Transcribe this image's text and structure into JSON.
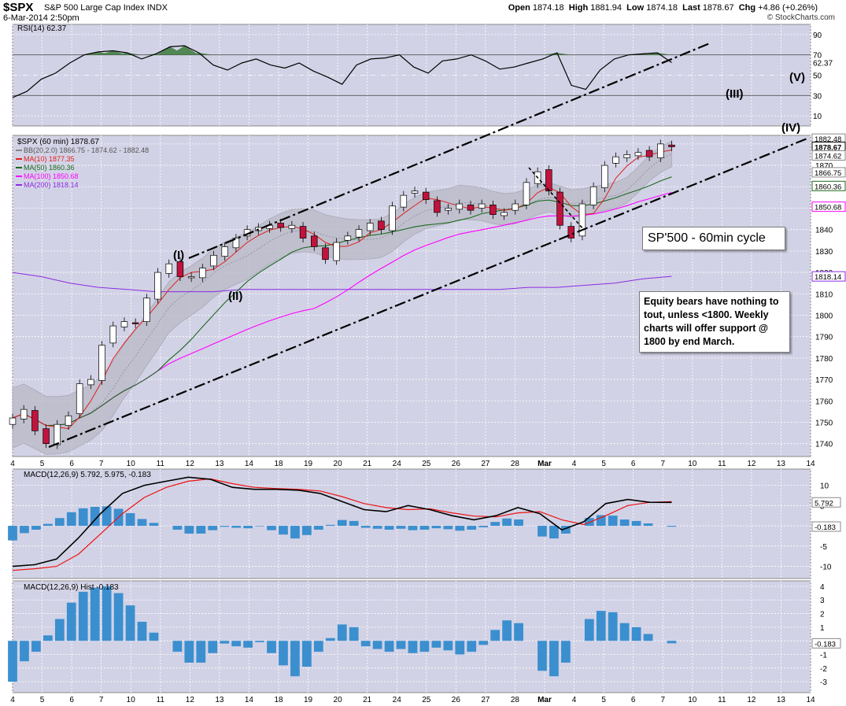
{
  "header": {
    "symbol": "$SPX",
    "name": "S&P 500 Large Cap Index",
    "exchange": "INDX",
    "date": "6-Mar-2014 2:50pm",
    "open_label": "Open",
    "open": "1874.18",
    "high_label": "High",
    "high": "1881.94",
    "low_label": "Low",
    "low": "1874.18",
    "last_label": "Last",
    "last": "1878.67",
    "chg_label": "Chg",
    "chg": "+4.86 (+0.26%)",
    "credit": "© StockCharts.com"
  },
  "annotations": {
    "cycle_box": "SP'500 - 60min cycle",
    "note": "Equity bears have nothing to tout, unless <1800. Weekly charts will offer support @ 1800 by end March.",
    "waves": [
      "(I)",
      "(II)",
      "(III)",
      "(IV)",
      "(V)"
    ]
  },
  "colors": {
    "panel_bg": "#d2d2e6",
    "up": "#ffffff",
    "down": "#c0133d",
    "ma10": "#e0201e",
    "ma50": "#1d6a1d",
    "ma100": "#ff00ff",
    "ma200": "#8a2be2",
    "macd": "#000000",
    "signal": "#ee1111",
    "hist": "#3b8fcf",
    "rsi_fill": "#3a7a3a"
  },
  "chart_data": {
    "type": "candlestick",
    "x_tick_labels": [
      "4",
      "5",
      "6",
      "7",
      "10",
      "11",
      "12",
      "13",
      "14",
      "18",
      "19",
      "20",
      "21",
      "24",
      "25",
      "26",
      "27",
      "28",
      "Mar",
      "4",
      "5",
      "6",
      "7",
      "10",
      "11",
      "12",
      "13",
      "14"
    ],
    "price_panel": {
      "title": "$SPX (60 min) 1878.67",
      "legend": [
        {
          "name": "BB(20,2.0) 1866.75 - 1874.62 - 1882.48",
          "color": "#888888"
        },
        {
          "name": "MA(10) 1877.35",
          "color": "#e0201e"
        },
        {
          "name": "MA(50) 1860.36",
          "color": "#1d6a1d"
        },
        {
          "name": "MA(100) 1850.68",
          "color": "#ff00ff"
        },
        {
          "name": "MA(200) 1818.14",
          "color": "#8a2be2"
        }
      ],
      "y_ticks": [
        1740,
        1750,
        1760,
        1770,
        1780,
        1790,
        1800,
        1810,
        1820,
        1830,
        1840,
        1850,
        1860,
        1870,
        1880
      ],
      "ylim": [
        1734,
        1884
      ],
      "right_tags": [
        "1882.48",
        "1878.67",
        "1874.62",
        "1866.75",
        "1860.36",
        "1850.68",
        "1818.14"
      ],
      "close_series": [
        1752,
        1756,
        1746,
        1740,
        1749,
        1753,
        1768,
        1770,
        1786,
        1795,
        1797,
        1796,
        1808,
        1820,
        1824,
        1818,
        1818,
        1822,
        1828,
        1832,
        1836,
        1840,
        1841,
        1842,
        1841,
        1842,
        1836,
        1832,
        1826,
        1834,
        1837,
        1840,
        1843,
        1840,
        1851,
        1856,
        1858,
        1854,
        1848,
        1850,
        1852,
        1849,
        1852,
        1847,
        1848,
        1852,
        1862,
        1867,
        1858,
        1842,
        1836,
        1852,
        1860,
        1870,
        1874,
        1875,
        1876,
        1874,
        1880,
        1878.67
      ],
      "ma200_series": [
        1820,
        1818,
        1815,
        1813,
        1812,
        1811,
        1811,
        1811,
        1812,
        1812,
        1812,
        1812,
        1812,
        1812,
        1812,
        1812,
        1812,
        1812,
        1813,
        1813,
        1814,
        1815,
        1817,
        1818.14
      ]
    },
    "rsi_panel": {
      "name": "RSI(14) 62.37",
      "y_ticks": [
        10,
        30,
        50,
        70,
        90
      ],
      "ylim": [
        0,
        100
      ],
      "value_tag": "62.37",
      "series": [
        28,
        34,
        46,
        52,
        62,
        70,
        73,
        74,
        72,
        66,
        71,
        78,
        79,
        72,
        60,
        55,
        62,
        66,
        60,
        57,
        62,
        54,
        48,
        41,
        60,
        66,
        67,
        70,
        58,
        52,
        64,
        66,
        70,
        64,
        56,
        58,
        62,
        66,
        72,
        40,
        36,
        55,
        66,
        70,
        71,
        72,
        62.37
      ]
    },
    "macd_panel": {
      "name": "MACD(12,26,9) 5.792, 5.975, -0.183",
      "y_ticks": [
        -10,
        -5,
        0,
        5,
        10
      ],
      "ylim": [
        -13,
        14
      ],
      "macd_series": [
        -10,
        -9.6,
        -8.2,
        -3,
        3,
        8,
        10,
        11,
        12,
        11.5,
        9.5,
        9,
        9,
        8.8,
        8,
        6,
        4,
        3.5,
        5,
        4,
        2.5,
        1.5,
        2.5,
        4.5,
        3,
        -1,
        1,
        5.5,
        6.5,
        5.8,
        5.792
      ],
      "signal_series": [
        -11,
        -10.6,
        -10,
        -7,
        -2,
        3,
        7,
        9.5,
        11,
        11.6,
        10.4,
        9.5,
        9.2,
        9,
        8.6,
        7.2,
        5.5,
        4.5,
        4,
        4.2,
        3.2,
        2.4,
        2.2,
        3.2,
        3.5,
        1.5,
        0.3,
        2.5,
        5,
        5.8,
        5.975
      ],
      "value_tags": [
        "5.792",
        "-0.183"
      ]
    },
    "hist_panel": {
      "name": "MACD(12,26,9) Hist -0.183",
      "y_ticks": [
        -3,
        -2,
        -1,
        0,
        1,
        2,
        3,
        4
      ],
      "ylim": [
        -3.8,
        4.4
      ],
      "value_tag": "-0.183",
      "series": [
        -3,
        -1.5,
        -0.8,
        0.4,
        1.6,
        2.8,
        3.6,
        3.9,
        4,
        3.5,
        2.6,
        1.4,
        0.6,
        0,
        -0.8,
        -1.6,
        -1.6,
        -0.9,
        -0.2,
        -0.4,
        -0.5,
        -0.1,
        -0.9,
        -1.8,
        -2.6,
        -1.9,
        -0.8,
        0.2,
        1.2,
        1,
        -0.4,
        -0.6,
        -0.8,
        -0.6,
        -0.9,
        -0.8,
        -0.5,
        -0.7,
        -1,
        -0.8,
        -0.3,
        0.8,
        1.5,
        1.3,
        0,
        -2.2,
        -2.6,
        -1.6,
        0,
        1.6,
        2.2,
        2.1,
        1.3,
        1,
        0.5,
        0,
        -0.183
      ]
    }
  }
}
